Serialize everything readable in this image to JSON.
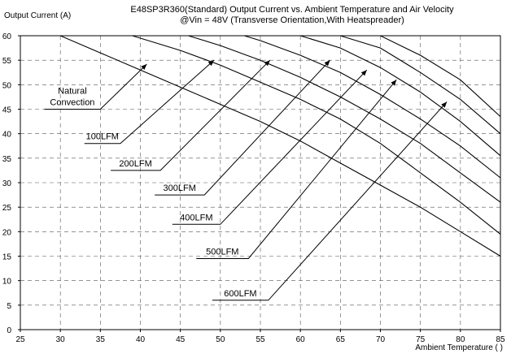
{
  "chart_data": {
    "type": "line",
    "title": "E48SP3R360(Standard)  Output Current vs. Ambient Temperature and Air Velocity",
    "subtitle": "@Vin = 48V (Transverse Orientation,With Heatspreader)",
    "ylabel": "Output Current (A)",
    "xlabel": "Ambient Temperature (   )",
    "xlim": [
      25,
      85
    ],
    "ylim": [
      0,
      60
    ],
    "x_ticks": [
      "25",
      "30",
      "35",
      "40",
      "45",
      "50",
      "55",
      "60",
      "65",
      "70",
      "75",
      "80",
      "85"
    ],
    "y_ticks": [
      "0",
      "5",
      "10",
      "15",
      "20",
      "25",
      "30",
      "35",
      "40",
      "45",
      "50",
      "55",
      "60"
    ],
    "grid": "dashed",
    "series": [
      {
        "name": "Natural Convection",
        "points": [
          [
            25,
            60
          ],
          [
            30,
            60
          ],
          [
            35,
            56.5
          ],
          [
            40,
            53
          ],
          [
            45,
            49.5
          ],
          [
            50,
            46
          ],
          [
            55,
            42.5
          ],
          [
            60,
            38.5
          ],
          [
            65,
            34
          ],
          [
            70,
            29.5
          ],
          [
            75,
            25
          ],
          [
            80,
            20
          ],
          [
            85,
            15
          ]
        ]
      },
      {
        "name": "100LFM",
        "points": [
          [
            25,
            60
          ],
          [
            39,
            60
          ],
          [
            45,
            57
          ],
          [
            50,
            54
          ],
          [
            55,
            50.5
          ],
          [
            60,
            47
          ],
          [
            65,
            43
          ],
          [
            70,
            38
          ],
          [
            75,
            32
          ],
          [
            80,
            26
          ],
          [
            85,
            19.5
          ]
        ]
      },
      {
        "name": "200LFM",
        "points": [
          [
            25,
            60
          ],
          [
            46,
            60
          ],
          [
            50,
            58
          ],
          [
            55,
            55
          ],
          [
            60,
            51.5
          ],
          [
            65,
            47.5
          ],
          [
            70,
            43
          ],
          [
            75,
            38
          ],
          [
            80,
            32
          ],
          [
            85,
            26
          ]
        ]
      },
      {
        "name": "300LFM",
        "points": [
          [
            25,
            60
          ],
          [
            53,
            60
          ],
          [
            55,
            59
          ],
          [
            60,
            56
          ],
          [
            65,
            52.5
          ],
          [
            70,
            48
          ],
          [
            75,
            43
          ],
          [
            80,
            37.5
          ],
          [
            85,
            31
          ]
        ]
      },
      {
        "name": "400LFM",
        "points": [
          [
            25,
            60
          ],
          [
            60,
            60
          ],
          [
            65,
            57.5
          ],
          [
            70,
            53.5
          ],
          [
            75,
            48.5
          ],
          [
            80,
            42.5
          ],
          [
            85,
            35.5
          ]
        ]
      },
      {
        "name": "500LFM",
        "points": [
          [
            25,
            60
          ],
          [
            65,
            60
          ],
          [
            70,
            57.5
          ],
          [
            75,
            52.5
          ],
          [
            80,
            47
          ],
          [
            85,
            40
          ]
        ]
      },
      {
        "name": "600LFM",
        "points": [
          [
            25,
            60
          ],
          [
            70,
            60
          ],
          [
            75,
            56
          ],
          [
            80,
            51
          ],
          [
            85,
            43.5
          ]
        ]
      }
    ],
    "annotations": [
      {
        "lines": [
          "Natural",
          "Convection"
        ],
        "leader": [
          [
            28,
            45
          ],
          [
            35,
            45
          ],
          [
            40.8,
            54.2
          ]
        ]
      },
      {
        "lines": [
          "100LFM"
        ],
        "leader": [
          [
            33,
            38
          ],
          [
            37.5,
            38
          ],
          [
            49.2,
            55
          ]
        ]
      },
      {
        "lines": [
          "200LFM"
        ],
        "leader": [
          [
            36.3,
            32.5
          ],
          [
            42.5,
            32.5
          ],
          [
            56.2,
            55
          ]
        ]
      },
      {
        "lines": [
          "300LFM"
        ],
        "leader": [
          [
            41.8,
            27.5
          ],
          [
            48,
            27.5
          ],
          [
            63.7,
            55
          ]
        ]
      },
      {
        "lines": [
          "400LFM"
        ],
        "leader": [
          [
            44,
            21.5
          ],
          [
            50,
            21.5
          ],
          [
            68.3,
            53
          ]
        ]
      },
      {
        "lines": [
          "500LFM"
        ],
        "leader": [
          [
            47,
            14.5
          ],
          [
            53.5,
            14.5
          ],
          [
            72,
            51
          ]
        ]
      },
      {
        "lines": [
          "600LFM"
        ],
        "leader": [
          [
            49,
            6
          ],
          [
            56,
            6
          ],
          [
            78.3,
            46.5
          ]
        ]
      }
    ]
  }
}
